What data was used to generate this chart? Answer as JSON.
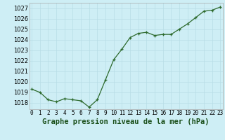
{
  "x": [
    0,
    1,
    2,
    3,
    4,
    5,
    6,
    7,
    8,
    9,
    10,
    11,
    12,
    13,
    14,
    15,
    16,
    17,
    18,
    19,
    20,
    21,
    22,
    23
  ],
  "y": [
    1019.3,
    1019.0,
    1018.3,
    1018.1,
    1018.4,
    1018.3,
    1018.2,
    1017.6,
    1018.3,
    1020.2,
    1022.1,
    1023.1,
    1024.2,
    1024.6,
    1024.7,
    1024.4,
    1024.5,
    1024.5,
    1025.0,
    1025.5,
    1026.1,
    1026.7,
    1026.8,
    1027.1
  ],
  "line_color": "#2d6a2d",
  "marker_color": "#2d6a2d",
  "bg_color": "#ceeef5",
  "grid_color": "#b8dde6",
  "title": "Graphe pression niveau de la mer (hPa)",
  "ylim_min": 1017.4,
  "ylim_max": 1027.5,
  "yticks": [
    1018,
    1019,
    1020,
    1021,
    1022,
    1023,
    1024,
    1025,
    1026,
    1027
  ],
  "xtick_labels": [
    "0",
    "1",
    "2",
    "3",
    "4",
    "5",
    "6",
    "7",
    "8",
    "9",
    "10",
    "11",
    "12",
    "13",
    "14",
    "15",
    "16",
    "17",
    "18",
    "19",
    "20",
    "21",
    "22",
    "23"
  ],
  "ylabel_fontsize": 6.0,
  "xlabel_fontsize": 5.5,
  "title_fontsize": 7.5,
  "spine_color": "#aaaaaa",
  "marker_size": 3.5,
  "linewidth": 0.9
}
